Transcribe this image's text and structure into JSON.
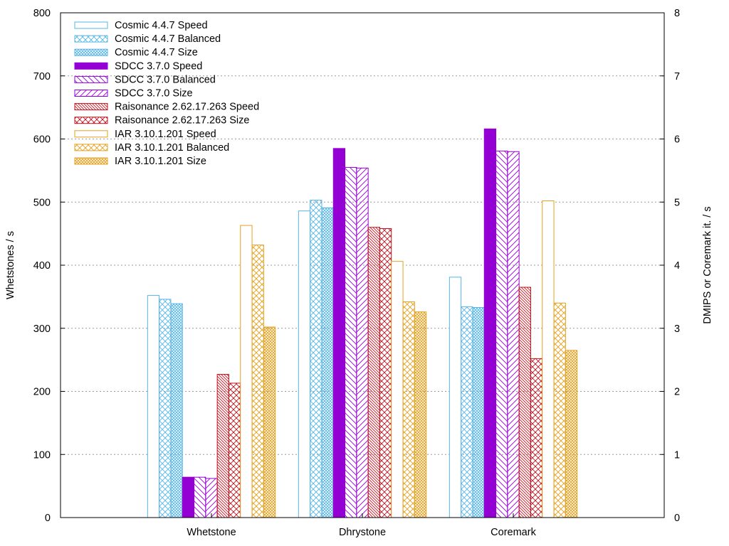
{
  "chart_data": {
    "type": "bar",
    "categories": [
      "Whetstone",
      "Dhrystone",
      "Coremark"
    ],
    "ylabel": "Whetstones / s",
    "y2label": "DMIPS or Coremark it. / s",
    "ylim": [
      0,
      800
    ],
    "y2lim": [
      0,
      8
    ],
    "yticks": [
      "0",
      "100",
      "200",
      "300",
      "400",
      "500",
      "600",
      "700",
      "800"
    ],
    "y2ticks": [
      "0",
      "1",
      "2",
      "3",
      "4",
      "5",
      "6",
      "7",
      "8"
    ],
    "grid": true,
    "legend_position": "top-left",
    "series": [
      {
        "name": "Cosmic 4.4.7 Speed",
        "color": "#56b4e9",
        "pattern": "empty",
        "values": [
          352,
          486,
          381
        ]
      },
      {
        "name": "Cosmic 4.4.7 Balanced",
        "color": "#56b4e9",
        "pattern": "cross",
        "values": [
          346,
          503,
          334
        ]
      },
      {
        "name": "Cosmic 4.4.7 Size",
        "color": "#56b4e9",
        "pattern": "dense",
        "values": [
          339,
          491,
          333
        ]
      },
      {
        "name": "SDCC 3.7.0 Speed",
        "color": "#9400d3",
        "pattern": "solid",
        "values": [
          64,
          585,
          616
        ]
      },
      {
        "name": "SDCC 3.7.0 Balanced",
        "color": "#9400d3",
        "pattern": "hatchA",
        "values": [
          64,
          555,
          581
        ]
      },
      {
        "name": "SDCC 3.7.0 Size",
        "color": "#9400d3",
        "pattern": "hatchB",
        "values": [
          62,
          554,
          580
        ]
      },
      {
        "name": "Raisonance 2.62.17.263 Speed",
        "color": "#c0121e",
        "pattern": "hatchC",
        "values": [
          227,
          460,
          365
        ]
      },
      {
        "name": "Raisonance 2.62.17.263 Size",
        "color": "#c0121e",
        "pattern": "hatchD",
        "values": [
          213,
          458,
          252
        ]
      },
      {
        "name": "IAR 3.10.1.201 Speed",
        "color": "#e6a01e",
        "pattern": "empty",
        "values": [
          463,
          406,
          502
        ]
      },
      {
        "name": "IAR 3.10.1.201 Balanced",
        "color": "#e6a01e",
        "pattern": "cross",
        "values": [
          432,
          342,
          340
        ]
      },
      {
        "name": "IAR 3.10.1.201 Size",
        "color": "#e6a01e",
        "pattern": "dense",
        "values": [
          302,
          326,
          265
        ]
      }
    ]
  }
}
